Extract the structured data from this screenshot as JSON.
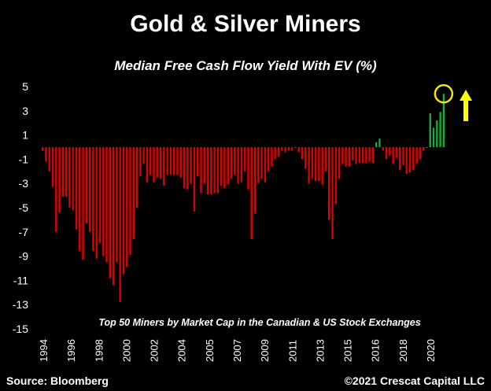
{
  "header": {
    "title": "Gold & Silver Miners",
    "subtitle": "Median Free Cash Flow Yield With EV (%)"
  },
  "footer": {
    "source": "Source: Bloomberg",
    "copyright": "©2021 Crescat Capital LLC"
  },
  "chart_data": {
    "type": "bar",
    "annotation": "Top 50 Miners by Market Cap in the Canadian & US Stock Exchanges",
    "ylim": [
      -15,
      5
    ],
    "yticks": [
      5,
      3,
      1,
      -1,
      -3,
      -5,
      -7,
      -9,
      -11,
      -13,
      -15
    ],
    "xticks": [
      "1994",
      "1996",
      "1998",
      "2000",
      "2002",
      "2004",
      "2005",
      "2007",
      "2009",
      "2011",
      "2013",
      "2015",
      "2016",
      "2018",
      "2020"
    ],
    "colors": {
      "negative": "#e00000",
      "positive": "#1fa83a",
      "circle": "#f0e614",
      "arrow": "#ffff00"
    },
    "values": [
      -0.3,
      -1.2,
      -2.0,
      -3.3,
      -7.0,
      -5.4,
      -4.1,
      -4.1,
      -5.0,
      -5.2,
      -6.8,
      -8.6,
      -9.3,
      -6.3,
      -7.0,
      -8.6,
      -9.2,
      -7.9,
      -9.0,
      -9.5,
      -10.8,
      -11.4,
      -9.5,
      -12.8,
      -10.5,
      -9.9,
      -8.9,
      -7.6,
      -5.0,
      -2.4,
      -1.4,
      -2.9,
      -2.3,
      -2.9,
      -2.5,
      -2.6,
      -3.2,
      -2.3,
      -2.3,
      -2.3,
      -2.3,
      -2.5,
      -3.4,
      -3.5,
      -3.0,
      -5.3,
      -2.4,
      -3.8,
      -3.0,
      -3.9,
      -3.9,
      -3.8,
      -3.8,
      -3.2,
      -3.4,
      -3.1,
      -2.6,
      -2.3,
      -3.0,
      -2.9,
      -2.0,
      -3.5,
      -7.6,
      -5.5,
      -3.0,
      -2.6,
      -2.9,
      -2.0,
      -1.6,
      -1.0,
      -0.8,
      -0.3,
      -0.4,
      -0.3,
      -0.3,
      0.0,
      -0.4,
      -1.0,
      -1.8,
      -3.0,
      -2.6,
      -2.8,
      -2.8,
      -3.1,
      -2.0,
      -6.0,
      -7.6,
      -4.7,
      -2.6,
      -1.4,
      -1.6,
      -1.6,
      -1.1,
      -1.4,
      -1.3,
      -1.3,
      -1.3,
      -1.2,
      -1.3,
      0.4,
      0.7,
      -0.3,
      -1.0,
      -0.7,
      -1.4,
      -0.9,
      -1.9,
      -1.5,
      -2.2,
      -2.1,
      -1.9,
      -1.4,
      -1.0,
      -0.3,
      0.0,
      2.8,
      1.6,
      2.2,
      2.9,
      4.4
    ]
  }
}
